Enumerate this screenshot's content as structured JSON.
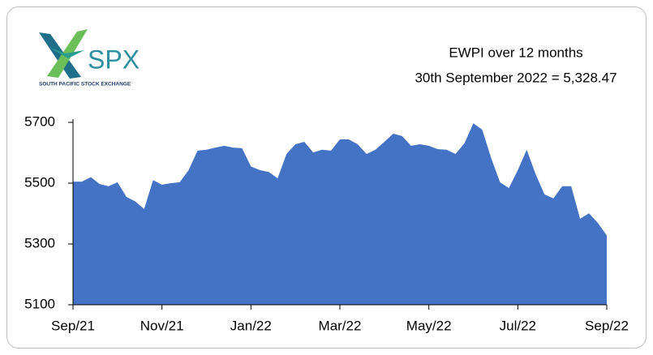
{
  "logo": {
    "name": "SPX",
    "tagline": "SOUTH PACIFIC STOCK EXCHANGE"
  },
  "chart_data": {
    "type": "area",
    "title": "EWPI over 12 months",
    "subtitle": "30th September 2022 = 5,328.47",
    "color": "#4472c4",
    "categories": [
      "Sep/21",
      null,
      null,
      null,
      null,
      null,
      null,
      null,
      null,
      null,
      "Nov/21",
      null,
      null,
      null,
      null,
      null,
      null,
      null,
      null,
      null,
      "Jan/22",
      null,
      null,
      null,
      null,
      null,
      null,
      null,
      null,
      null,
      "Mar/22",
      null,
      null,
      null,
      null,
      null,
      null,
      null,
      null,
      null,
      "May/22",
      null,
      null,
      null,
      null,
      null,
      null,
      null,
      null,
      null,
      "Jul/22",
      null,
      null,
      null,
      null,
      null,
      null,
      null,
      null,
      null,
      "Sep/22"
    ],
    "values": [
      5505,
      5505,
      5520,
      5497,
      5490,
      5503,
      5455,
      5440,
      5415,
      5510,
      5495,
      5500,
      5503,
      5543,
      5607,
      5610,
      5617,
      5623,
      5617,
      5615,
      5555,
      5543,
      5537,
      5516,
      5596,
      5628,
      5636,
      5601,
      5610,
      5607,
      5644,
      5644,
      5628,
      5596,
      5610,
      5636,
      5663,
      5655,
      5623,
      5628,
      5623,
      5612,
      5610,
      5596,
      5631,
      5697,
      5676,
      5583,
      5503,
      5484,
      5543,
      5610,
      5530,
      5463,
      5450,
      5490,
      5490,
      5383,
      5401,
      5369,
      5328
    ],
    "ylim": [
      5100,
      5700
    ],
    "yticks": [
      5100,
      5300,
      5500,
      5700
    ]
  }
}
